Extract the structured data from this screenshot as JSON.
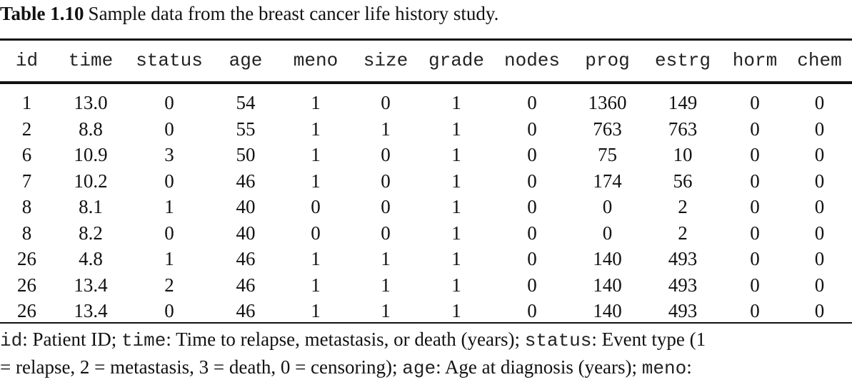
{
  "caption": {
    "number": "Table 1.10",
    "text": "Sample data from the breast cancer life history study."
  },
  "table": {
    "columns": [
      "id",
      "time",
      "status",
      "age",
      "meno",
      "size",
      "grade",
      "nodes",
      "prog",
      "estrg",
      "horm",
      "chem"
    ],
    "rows": [
      [
        "1",
        "13.0",
        "0",
        "54",
        "1",
        "0",
        "1",
        "0",
        "1360",
        "149",
        "0",
        "0"
      ],
      [
        "2",
        "8.8",
        "0",
        "55",
        "1",
        "1",
        "1",
        "0",
        "763",
        "763",
        "0",
        "0"
      ],
      [
        "6",
        "10.9",
        "3",
        "50",
        "1",
        "0",
        "1",
        "0",
        "75",
        "10",
        "0",
        "0"
      ],
      [
        "7",
        "10.2",
        "0",
        "46",
        "1",
        "0",
        "1",
        "0",
        "174",
        "56",
        "0",
        "0"
      ],
      [
        "8",
        "8.1",
        "1",
        "40",
        "0",
        "0",
        "1",
        "0",
        "0",
        "2",
        "0",
        "0"
      ],
      [
        "8",
        "8.2",
        "0",
        "40",
        "0",
        "0",
        "1",
        "0",
        "0",
        "2",
        "0",
        "0"
      ],
      [
        "26",
        "4.8",
        "1",
        "46",
        "1",
        "1",
        "1",
        "0",
        "140",
        "493",
        "0",
        "0"
      ],
      [
        "26",
        "13.4",
        "2",
        "46",
        "1",
        "1",
        "1",
        "0",
        "140",
        "493",
        "0",
        "0"
      ],
      [
        "26",
        "13.4",
        "0",
        "46",
        "1",
        "1",
        "1",
        "0",
        "140",
        "493",
        "0",
        "0"
      ]
    ]
  },
  "footnote": {
    "line1": [
      {
        "mono": true,
        "text": "id"
      },
      {
        "mono": false,
        "text": ": Patient ID; "
      },
      {
        "mono": true,
        "text": "time"
      },
      {
        "mono": false,
        "text": ": Time to relapse, metastasis, or death (years); "
      },
      {
        "mono": true,
        "text": "status"
      },
      {
        "mono": false,
        "text": ": Event type (1"
      }
    ],
    "line2": [
      {
        "mono": false,
        "text": "= relapse, 2 = metastasis, 3 = death, 0 = censoring); "
      },
      {
        "mono": true,
        "text": "age"
      },
      {
        "mono": false,
        "text": ": Age at diagnosis (years); "
      },
      {
        "mono": true,
        "text": "meno"
      },
      {
        "mono": false,
        "text": ":"
      }
    ]
  }
}
